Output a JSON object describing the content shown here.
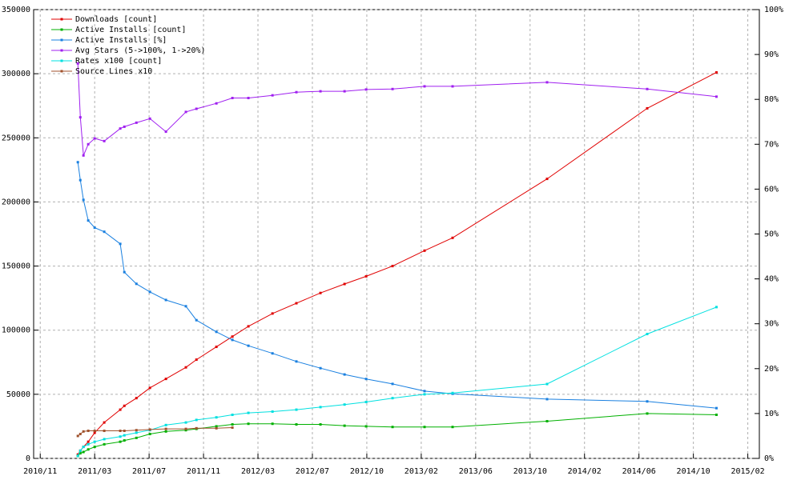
{
  "chart_data": {
    "type": "line",
    "x": [
      2011.078,
      2011.093,
      2011.112,
      2011.141,
      2011.18,
      2011.238,
      2011.335,
      2011.36,
      2011.433,
      2011.515,
      2011.612,
      2011.733,
      2011.797,
      2011.918,
      2012.015,
      2012.112,
      2012.258,
      2012.403,
      2012.549,
      2012.695,
      2012.826,
      2012.986,
      2013.18,
      2013.35,
      2013.923,
      2014.53,
      2014.95
    ],
    "xlim": [
      2010.81,
      2015.21
    ],
    "xticks": [
      {
        "value": 2010.85,
        "label": "2010/11"
      },
      {
        "value": 2011.18,
        "label": "2011/03"
      },
      {
        "value": 2011.51,
        "label": "2011/07"
      },
      {
        "value": 2011.84,
        "label": "2011/11"
      },
      {
        "value": 2012.17,
        "label": "2012/03"
      },
      {
        "value": 2012.5,
        "label": "2012/07"
      },
      {
        "value": 2012.83,
        "label": "2012/10"
      },
      {
        "value": 2013.16,
        "label": "2013/02"
      },
      {
        "value": 2013.49,
        "label": "2013/06"
      },
      {
        "value": 2013.82,
        "label": "2013/10"
      },
      {
        "value": 2014.15,
        "label": "2014/02"
      },
      {
        "value": 2014.48,
        "label": "2014/06"
      },
      {
        "value": 2014.81,
        "label": "2014/10"
      },
      {
        "value": 2015.14,
        "label": "2015/02"
      }
    ],
    "ylim": [
      0,
      350000
    ],
    "yticks": [
      0,
      50000,
      100000,
      150000,
      200000,
      250000,
      300000,
      350000
    ],
    "y2lim": [
      0,
      100
    ],
    "y2ticks": [
      {
        "value": 0,
        "label": "0%"
      },
      {
        "value": 10,
        "label": "10%"
      },
      {
        "value": 20,
        "label": "20%"
      },
      {
        "value": 30,
        "label": "30%"
      },
      {
        "value": 40,
        "label": "40%"
      },
      {
        "value": 50,
        "label": "50%"
      },
      {
        "value": 60,
        "label": "60%"
      },
      {
        "value": 70,
        "label": "70%"
      },
      {
        "value": 80,
        "label": "80%"
      },
      {
        "value": 90,
        "label": "90%"
      },
      {
        "value": 100,
        "label": "100%"
      }
    ],
    "grid": true,
    "legend": "top-left",
    "series": [
      {
        "name": "Downloads [count]",
        "color": "#e00000",
        "values": [
          3000,
          6000,
          9000,
          13000,
          20000,
          28000,
          38000,
          41000,
          47000,
          55000,
          62000,
          71000,
          77000,
          87000,
          95000,
          103000,
          113000,
          121000,
          129000,
          136000,
          142000,
          150000,
          162000,
          172000,
          218000,
          273000,
          301000
        ]
      },
      {
        "name": "Active Installs [count]",
        "color": "#00b000",
        "values": [
          2000,
          4000,
          5000,
          7000,
          9000,
          11000,
          13000,
          14000,
          16000,
          19000,
          21000,
          22000,
          23000,
          25000,
          26500,
          27000,
          27000,
          26500,
          26500,
          25500,
          25000,
          24500,
          24500,
          24500,
          29000,
          35000,
          34000
        ]
      },
      {
        "name": "Active Installs [%]",
        "color": "#1a80e0",
        "axis": "y2",
        "values": [
          66,
          62,
          57.6,
          53,
          51.4,
          50.5,
          47.8,
          41.5,
          38.9,
          37.1,
          35.3,
          33.9,
          30.8,
          28.2,
          26.4,
          25.1,
          23.4,
          21.6,
          20.1,
          18.7,
          17.7,
          16.6,
          15,
          14.4,
          13.2,
          12.7,
          11.2
        ]
      },
      {
        "name": "Avg Stars (5->100%, 1->20%)",
        "color": "#a020f0",
        "axis": "y2",
        "values": [
          88,
          76,
          67.5,
          70,
          71.3,
          70.7,
          73.5,
          73.9,
          74.8,
          75.7,
          72.8,
          77.2,
          77.9,
          79.1,
          80.3,
          80.3,
          80.9,
          81.6,
          81.8,
          81.8,
          82.2,
          82.3,
          82.9,
          82.9,
          83.8,
          82.3,
          80.6
        ]
      },
      {
        "name": "Rates x100 [count]",
        "color": "#00e0e0",
        "values": [
          2000,
          6000,
          9000,
          11000,
          13000,
          15000,
          17000,
          18000,
          20000,
          22000,
          26000,
          28000,
          30000,
          32000,
          34000,
          35500,
          36500,
          38000,
          40000,
          42000,
          44000,
          47000,
          50000,
          51000,
          58000,
          97000,
          118000
        ]
      },
      {
        "name": "Source Lines x10",
        "color": "#a0522d",
        "values": [
          17500,
          19000,
          21000,
          21500,
          21500,
          21500,
          21500,
          21500,
          22000,
          22500,
          23000,
          23000,
          23500,
          23500,
          24000,
          null,
          null,
          null,
          null,
          null,
          null,
          null,
          null,
          null,
          null,
          null,
          null
        ]
      }
    ]
  }
}
